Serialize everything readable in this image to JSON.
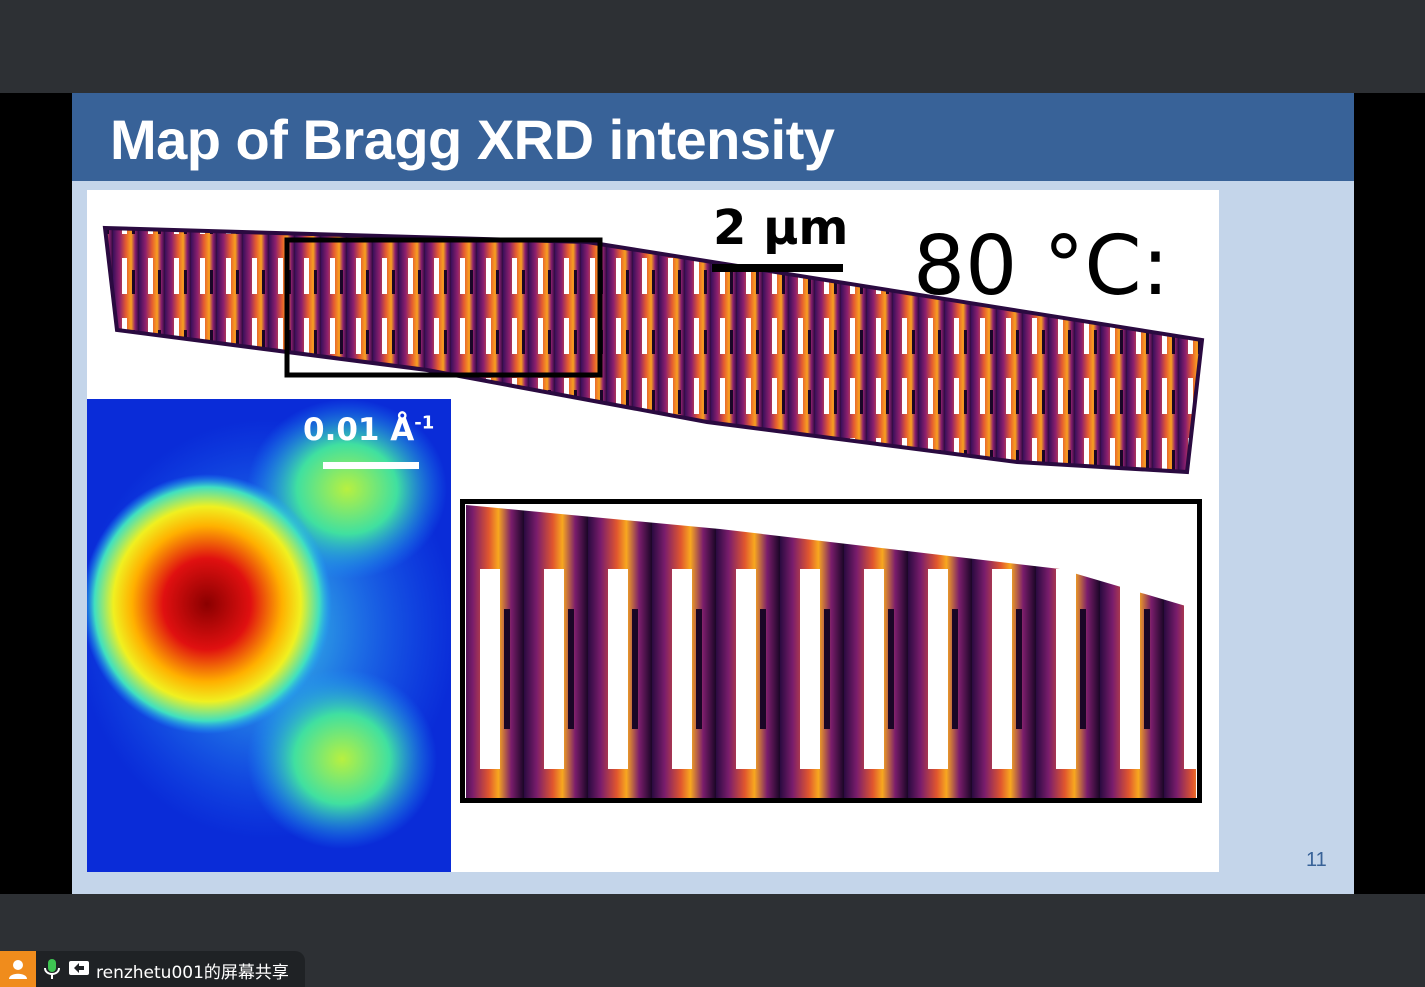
{
  "slide": {
    "title": "Map of Bragg XRD intensity",
    "scale_bar_label": "2 μm",
    "temperature_label": "80 °C:",
    "reciprocal_scale_label": "0.01 Å",
    "reciprocal_scale_exponent": "-1",
    "page_number": "11"
  },
  "meeting": {
    "share_status": "renzhetu001的屏幕共享"
  },
  "colors": {
    "header_blue": "#386298",
    "slide_background": "#c4d5ea",
    "meeting_background": "#2d3034",
    "user_badge": "#f08c1c",
    "mic_active": "#3ec552"
  },
  "icons": [
    "user-icon",
    "microphone-icon",
    "screen-share-icon"
  ]
}
